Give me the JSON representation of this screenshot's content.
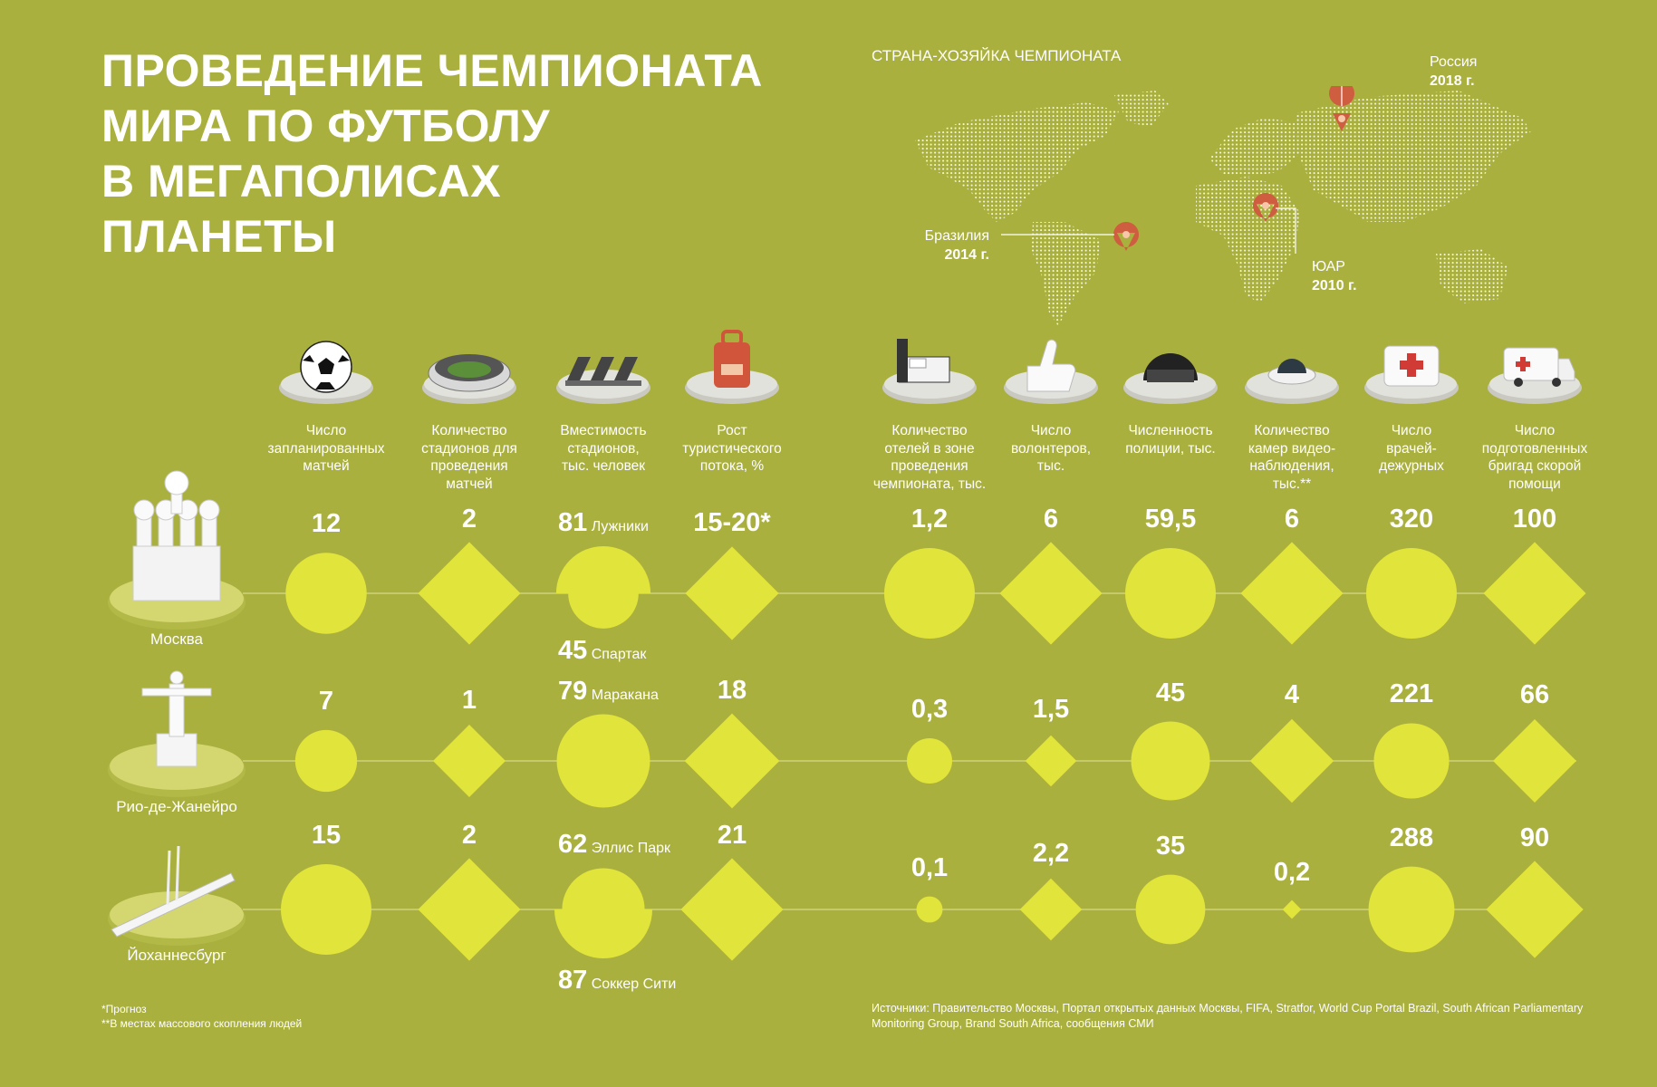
{
  "title_lines": [
    "ПРОВЕДЕНИЕ ЧЕМПИОНАТА",
    "МИРА ПО ФУТБОЛУ",
    "В МЕГАПОЛИСАХ",
    "ПЛАНЕТЫ"
  ],
  "map": {
    "heading": "СТРАНА-ХОЗЯЙКА ЧЕМПИОНАТА",
    "hosts": [
      {
        "country": "Россия",
        "year": "2018 г."
      },
      {
        "country": "Бразилия",
        "year": "2014 г."
      },
      {
        "country": "ЮАР",
        "year": "2010 г."
      }
    ]
  },
  "colors": {
    "background": "#aab03d",
    "marker": "#e1e43a",
    "pin": "#d9664a",
    "line": "#cfd37a"
  },
  "columns": [
    {
      "key": "matches",
      "label_lines": [
        "Число",
        "запланированных",
        "матчей"
      ],
      "icon": "football-icon",
      "shape": "circle"
    },
    {
      "key": "stadiums",
      "label_lines": [
        "Количество",
        "стадионов для",
        "проведения",
        "матчей"
      ],
      "icon": "stadium-icon",
      "shape": "diamond"
    },
    {
      "key": "capacity",
      "label_lines": [
        "Вместимость",
        "стадионов,",
        "тыс. человек"
      ],
      "icon": "stadium-seats-icon",
      "shape": "circle"
    },
    {
      "key": "tourism",
      "label_lines": [
        "Рост",
        "туристического",
        "потока, %"
      ],
      "icon": "luggage-icon",
      "shape": "diamond"
    },
    {
      "key": "hotels",
      "label_lines": [
        "Количество",
        "отелей в зоне",
        "проведения",
        "чемпионата, тыс."
      ],
      "icon": "hotel-bed-icon",
      "shape": "circle"
    },
    {
      "key": "volunteers",
      "label_lines": [
        "Число",
        "волонтеров,",
        "тыс."
      ],
      "icon": "thumbs-up-icon",
      "shape": "diamond"
    },
    {
      "key": "police",
      "label_lines": [
        "Численность",
        "полиции, тыс."
      ],
      "icon": "police-helmet-icon",
      "shape": "circle"
    },
    {
      "key": "cameras",
      "label_lines": [
        "Количество",
        "камер видео-",
        "наблюдения,",
        "тыс.**"
      ],
      "icon": "security-camera-icon",
      "shape": "diamond"
    },
    {
      "key": "doctors",
      "label_lines": [
        "Число",
        "врачей-",
        "дежурных"
      ],
      "icon": "first-aid-kit-icon",
      "shape": "circle"
    },
    {
      "key": "ambulances",
      "label_lines": [
        "Число",
        "подготовленных",
        "бригад скорой",
        "помощи"
      ],
      "icon": "ambulance-icon",
      "shape": "diamond"
    }
  ],
  "cities": [
    {
      "name": "Москва",
      "icon": "cathedral-icon",
      "values": {
        "matches": {
          "label": "12",
          "value": 12
        },
        "stadiums": {
          "label": "2",
          "value": 2
        },
        "capacity": {
          "top": {
            "value": "81",
            "name": "Лужники"
          },
          "bottom": {
            "value": "45",
            "name": "Спартак"
          }
        },
        "tourism": {
          "label": "15-20*",
          "value": 17.5
        },
        "hotels": {
          "label": "1,2",
          "value": 1.2
        },
        "volunteers": {
          "label": "6",
          "value": 6
        },
        "police": {
          "label": "59,5",
          "value": 59.5
        },
        "cameras": {
          "label": "6",
          "value": 6
        },
        "doctors": {
          "label": "320",
          "value": 320
        },
        "ambulances": {
          "label": "100",
          "value": 100
        }
      }
    },
    {
      "name": "Рио-де-Жанейро",
      "icon": "christ-statue-icon",
      "values": {
        "matches": {
          "label": "7",
          "value": 7
        },
        "stadiums": {
          "label": "1",
          "value": 1
        },
        "capacity": {
          "top": {
            "value": "79",
            "name": "Маракана"
          }
        },
        "tourism": {
          "label": "18",
          "value": 18
        },
        "hotels": {
          "label": "0,3",
          "value": 0.3
        },
        "volunteers": {
          "label": "1,5",
          "value": 1.5
        },
        "police": {
          "label": "45",
          "value": 45
        },
        "cameras": {
          "label": "4",
          "value": 4
        },
        "doctors": {
          "label": "221",
          "value": 221
        },
        "ambulances": {
          "label": "66",
          "value": 66
        }
      }
    },
    {
      "name": "Йоханнесбург",
      "icon": "bridge-icon",
      "values": {
        "matches": {
          "label": "15",
          "value": 15
        },
        "stadiums": {
          "label": "2",
          "value": 2
        },
        "capacity": {
          "top": {
            "value": "62",
            "name": "Эллис Парк"
          },
          "bottom": {
            "value": "87",
            "name": "Соккер Сити"
          }
        },
        "tourism": {
          "label": "21",
          "value": 21
        },
        "hotels": {
          "label": "0,1",
          "value": 0.1
        },
        "volunteers": {
          "label": "2,2",
          "value": 2.2
        },
        "police": {
          "label": "35",
          "value": 35
        },
        "cameras": {
          "label": "0,2",
          "value": 0.2
        },
        "doctors": {
          "label": "288",
          "value": 288
        },
        "ambulances": {
          "label": "90",
          "value": 90
        }
      }
    }
  ],
  "footnotes": [
    "*Прогноз",
    "**В местах массового скопления людей"
  ],
  "sources": "Источники: Правительство Москвы, Портал открытых данных Москвы, FIFA, Stratfor, World Cup Portal Brazil, South African Parliamentary Monitoring Group, Brand South Africa, сообщения СМИ"
}
